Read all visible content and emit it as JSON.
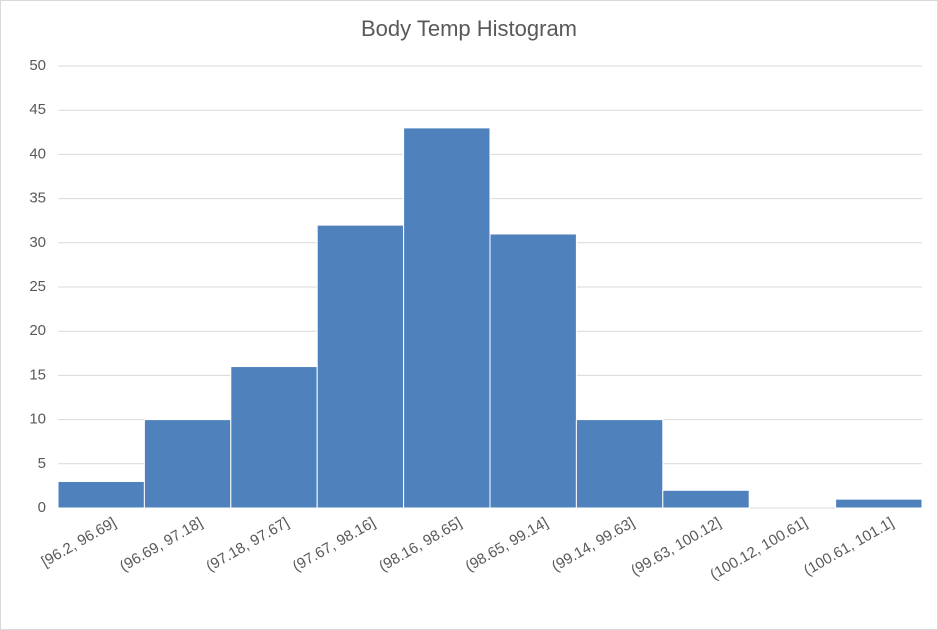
{
  "chart_data": {
    "type": "bar",
    "title": "Body Temp Histogram",
    "categories": [
      "[96.2, 96.69]",
      "(96.69, 97.18]",
      "(97.18, 97.67]",
      "(97.67, 98.16]",
      "(98.16, 98.65]",
      "(98.65, 99.14]",
      "(99.14, 99.63]",
      "(99.63, 100.12]",
      "(100.12, 100.61]",
      "(100.61, 101.1]"
    ],
    "values": [
      3,
      10,
      16,
      32,
      43,
      31,
      10,
      2,
      0,
      1
    ],
    "color": "#4f81bd",
    "ylim": [
      0,
      50
    ],
    "yticks": [
      0,
      5,
      10,
      15,
      20,
      25,
      30,
      35,
      40,
      45,
      50
    ],
    "grid": true
  }
}
